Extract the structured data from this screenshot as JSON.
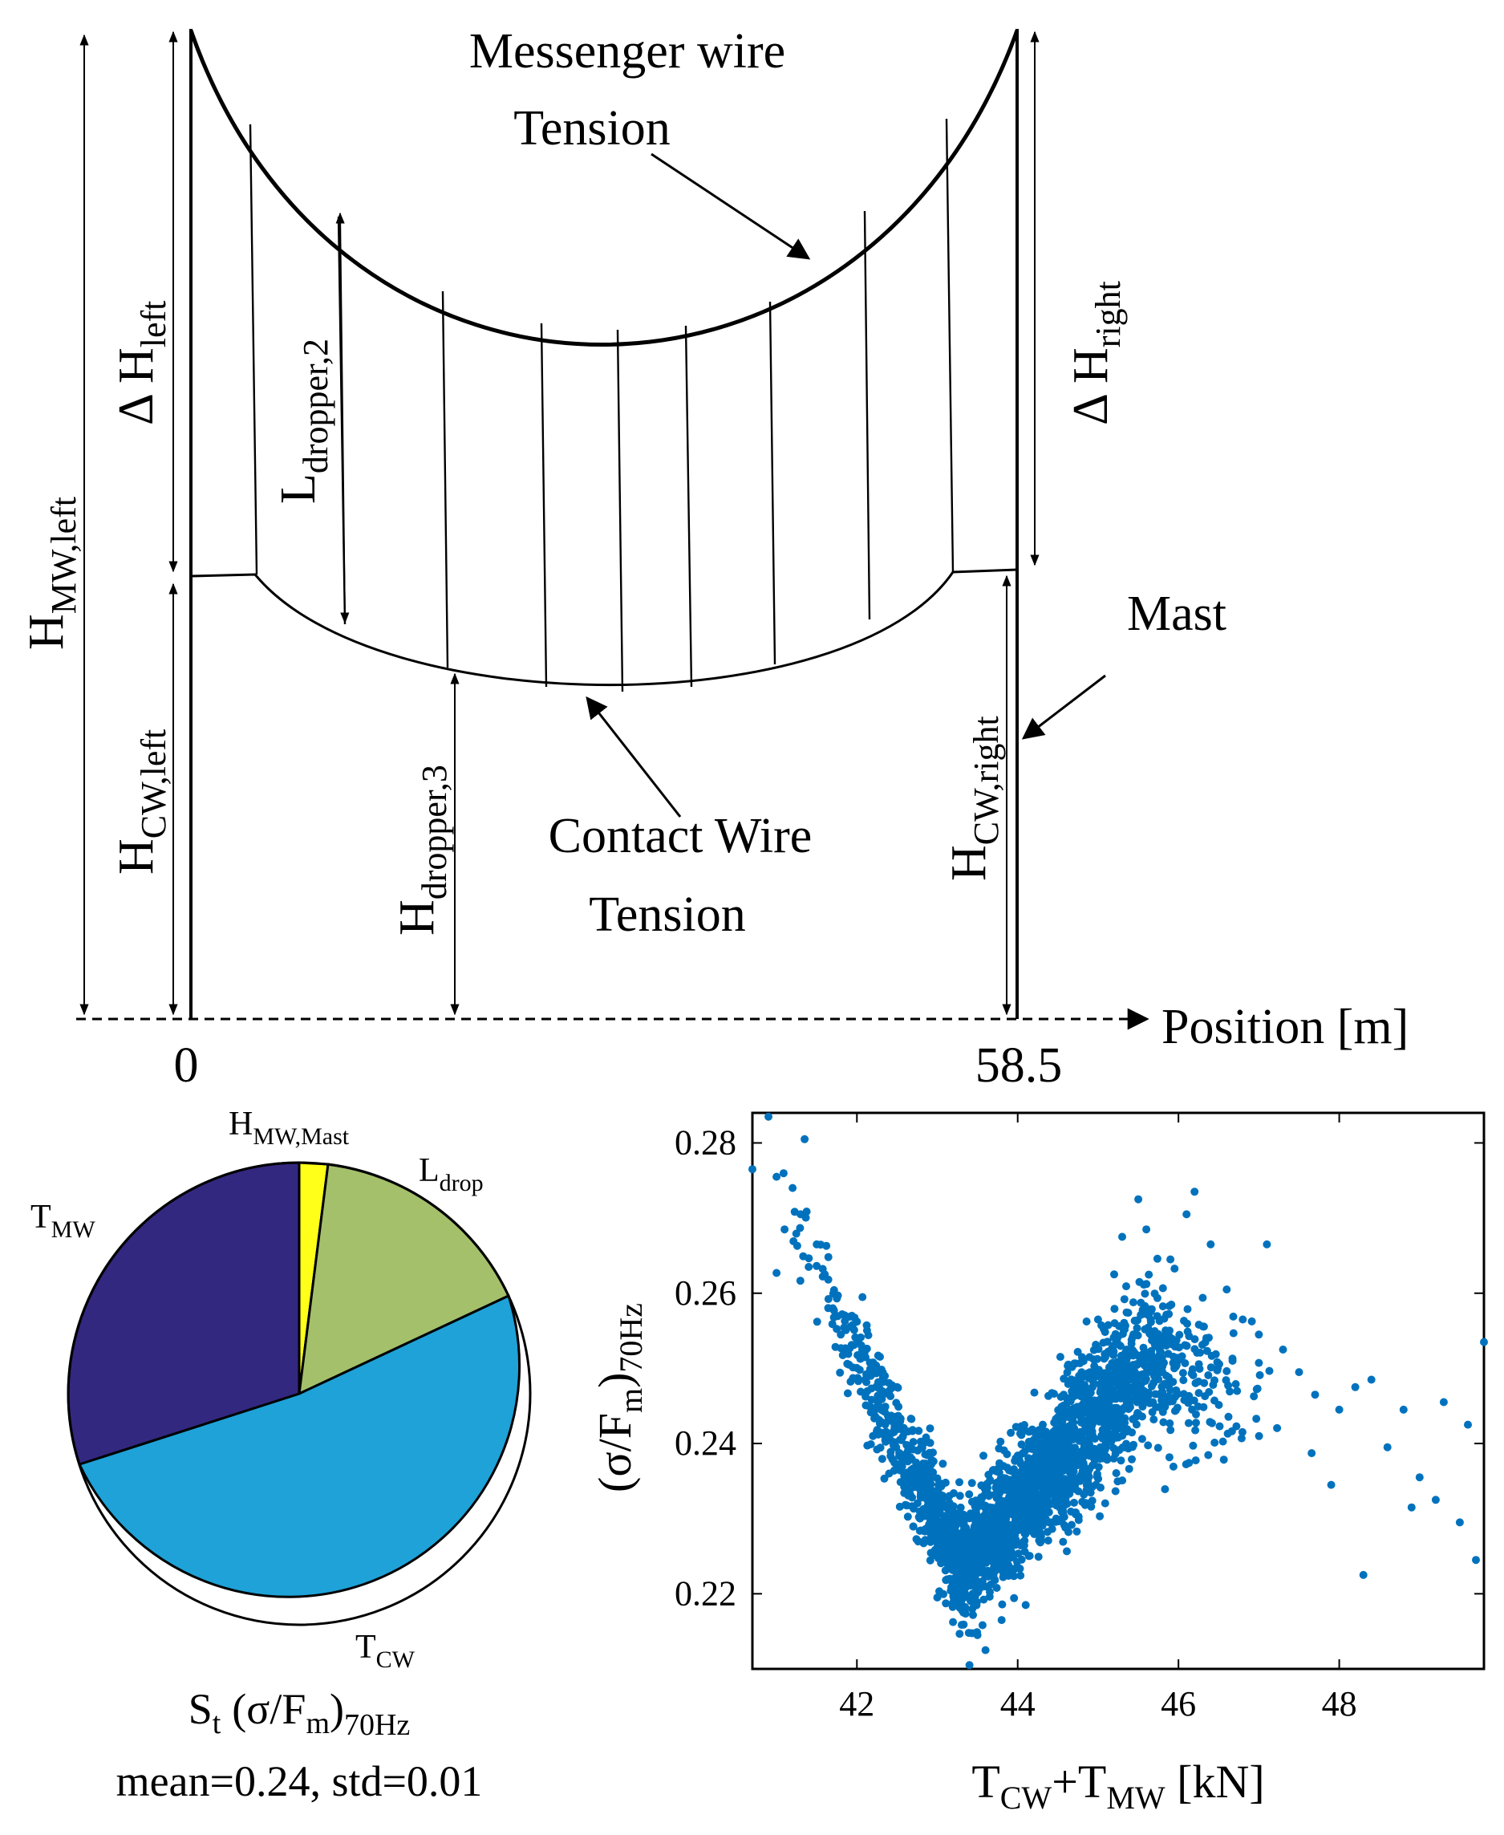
{
  "diagram": {
    "labels": {
      "messenger_line1": "Messenger wire",
      "messenger_line2": "Tension",
      "contact_line1": "Contact Wire",
      "contact_line2": "Tension",
      "mast": "Mast",
      "position_axis": "Position [m]",
      "pos_start": "0",
      "pos_end": "58.5",
      "h_mw_left_main": "H",
      "h_mw_left_sub": "MW,left",
      "dh_left_main": "Δ H",
      "dh_left_sub": "left",
      "l_dropper_main": "L",
      "l_dropper_sub": "dropper,2",
      "h_cw_left_main": "H",
      "h_cw_left_sub": "CW,left",
      "h_dropper_main": "H",
      "h_dropper_sub": "dropper,3",
      "dh_right_main": "Δ H",
      "dh_right_sub": "right",
      "h_cw_right_main": "H",
      "h_cw_right_sub": "CW,right"
    }
  },
  "pie": {
    "caption_main": "S",
    "caption_t": "t",
    "caption_expr": "(σ/F",
    "caption_m": "m",
    "caption_close": ")",
    "caption_sub": "70Hz",
    "stats": "mean=0.24, std=0.01",
    "labels": {
      "h_mw_mast_main": "H",
      "h_mw_mast_sub": "MW,Mast",
      "l_drop_main": "L",
      "l_drop_sub": "drop",
      "t_mw_main": "T",
      "t_mw_sub": "MW",
      "t_cw_main": "T",
      "t_cw_sub": "CW"
    }
  },
  "chart_data": {
    "type": "scatter",
    "title": "",
    "xlabel": "T_CW+T_MW [kN]",
    "ylabel": "(σ/F_m)_70Hz",
    "xlim": [
      40.7,
      49.8
    ],
    "ylim": [
      0.21,
      0.284
    ],
    "xticks": [
      "42",
      "44",
      "46",
      "48"
    ],
    "yticks": [
      "0.22",
      "0.24",
      "0.26",
      "0.28"
    ],
    "marker_color": "#0072BD",
    "grid": false,
    "note_on_points": "dense cloud (thousands of points); representative samples listed",
    "points": [
      [
        40.7,
        0.2765
      ],
      [
        40.9,
        0.2835
      ],
      [
        41.0,
        0.2755
      ],
      [
        41.2,
        0.274
      ],
      [
        41.35,
        0.2805
      ],
      [
        41.3,
        0.2705
      ],
      [
        41.1,
        0.2685
      ],
      [
        41.5,
        0.2665
      ],
      [
        41.4,
        0.2635
      ],
      [
        41.0,
        0.2627
      ],
      [
        41.6,
        0.2625
      ],
      [
        41.7,
        0.258
      ],
      [
        41.8,
        0.2545
      ],
      [
        41.9,
        0.2505
      ],
      [
        42.1,
        0.2485
      ],
      [
        42.3,
        0.2445
      ],
      [
        42.5,
        0.2475
      ],
      [
        42.2,
        0.241
      ],
      [
        42.6,
        0.2385
      ],
      [
        42.4,
        0.236
      ],
      [
        42.8,
        0.2345
      ],
      [
        42.9,
        0.2315
      ],
      [
        43.1,
        0.2285
      ],
      [
        43.2,
        0.2255
      ],
      [
        43.3,
        0.2205
      ],
      [
        43.4,
        0.2195
      ],
      [
        43.5,
        0.2145
      ],
      [
        43.6,
        0.2125
      ],
      [
        43.8,
        0.2165
      ],
      [
        43.4,
        0.2105
      ],
      [
        43.9,
        0.2235
      ],
      [
        44.0,
        0.2305
      ],
      [
        44.2,
        0.2345
      ],
      [
        44.3,
        0.2385
      ],
      [
        44.5,
        0.2435
      ],
      [
        44.7,
        0.2475
      ],
      [
        44.8,
        0.2515
      ],
      [
        45.0,
        0.2565
      ],
      [
        45.2,
        0.2625
      ],
      [
        45.3,
        0.2675
      ],
      [
        45.5,
        0.2725
      ],
      [
        45.6,
        0.2685
      ],
      [
        45.9,
        0.2645
      ],
      [
        46.1,
        0.2705
      ],
      [
        46.2,
        0.2735
      ],
      [
        46.4,
        0.2665
      ],
      [
        46.6,
        0.2605
      ],
      [
        46.8,
        0.2565
      ],
      [
        47.0,
        0.2545
      ],
      [
        47.1,
        0.2665
      ],
      [
        47.3,
        0.2525
      ],
      [
        47.5,
        0.2495
      ],
      [
        47.7,
        0.2465
      ],
      [
        48.0,
        0.2445
      ],
      [
        48.2,
        0.2475
      ],
      [
        48.4,
        0.2485
      ],
      [
        48.6,
        0.2395
      ],
      [
        48.8,
        0.2445
      ],
      [
        49.0,
        0.2355
      ],
      [
        49.3,
        0.2455
      ],
      [
        49.6,
        0.2425
      ],
      [
        49.8,
        0.2535
      ],
      [
        49.7,
        0.2245
      ],
      [
        48.3,
        0.2225
      ],
      [
        47.9,
        0.2345
      ],
      [
        48.9,
        0.2315
      ],
      [
        49.2,
        0.2325
      ],
      [
        49.5,
        0.2295
      ],
      [
        44.1,
        0.2185
      ],
      [
        43.0,
        0.2195
      ]
    ]
  }
}
